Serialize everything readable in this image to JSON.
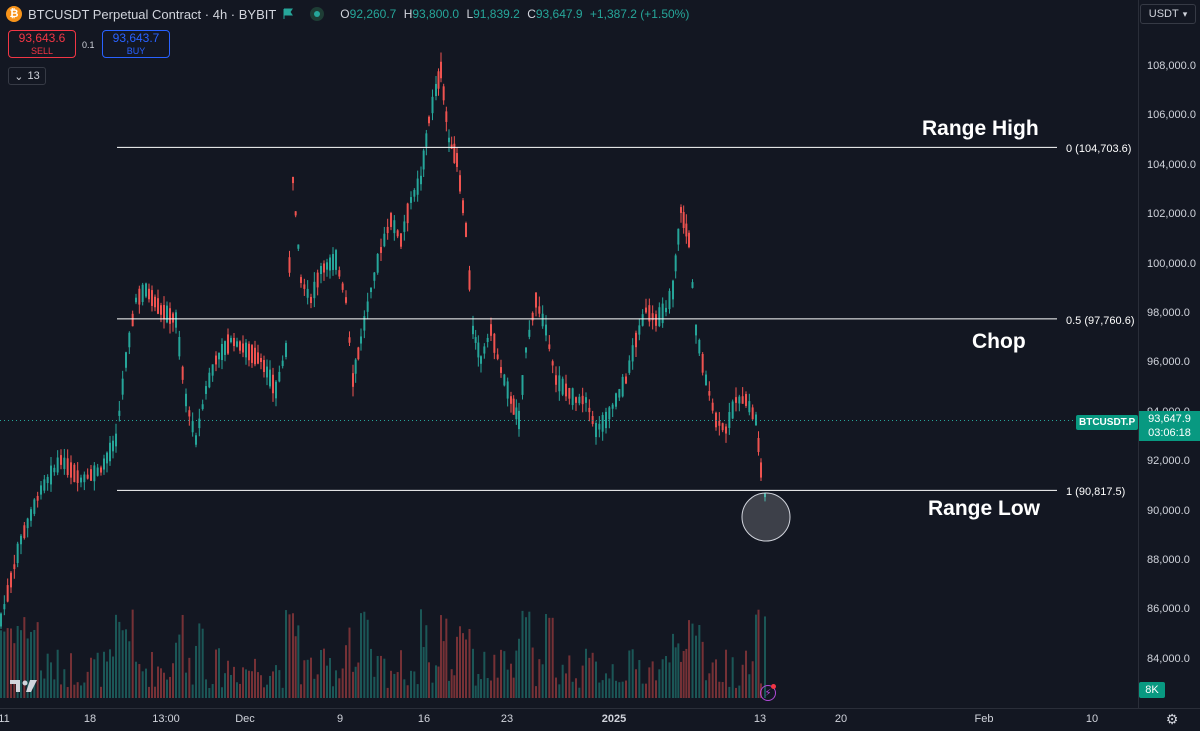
{
  "header": {
    "title": "BTCUSDT Perpetual Contract · 4h · BYBIT",
    "ohlc": [
      {
        "key": "O",
        "value": "92,260.7"
      },
      {
        "key": "H",
        "value": "93,800.0"
      },
      {
        "key": "L",
        "value": "91,839.2"
      },
      {
        "key": "C",
        "value": "93,647.9"
      }
    ],
    "change": "+1,387.2 (+1.50%)",
    "logo_icon": "bitcoin-logo-icon",
    "flag_icon": "flag-icon"
  },
  "trade": {
    "sell_price": "93,643.6",
    "sell_label": "SELL",
    "buy_price": "93,643.7",
    "buy_label": "BUY",
    "spread": "0.1"
  },
  "indicators_count": "13",
  "currency": "USDT",
  "price_axis": {
    "ticks": [
      "108,000.0",
      "106,000.0",
      "104,000.0",
      "102,000.0",
      "100,000.0",
      "98,000.0",
      "96,000.0",
      "94,000.0",
      "92,000.0",
      "90,000.0",
      "88,000.0",
      "86,000.0",
      "84,000.0"
    ]
  },
  "time_axis": {
    "ticks": [
      "11",
      "18",
      "13:00",
      "Dec",
      "9",
      "16",
      "23",
      "2025",
      "13",
      "20",
      "Feb",
      "10"
    ]
  },
  "levels": [
    {
      "label": "0 (104,703.6)",
      "price": 104703.6
    },
    {
      "label": "0.5 (97,760.6)",
      "price": 97760.6
    },
    {
      "label": "1 (90,817.5)",
      "price": 90817.5
    }
  ],
  "annotations": {
    "range_high": "Range High",
    "chop": "Chop",
    "range_low": "Range Low"
  },
  "last_price": {
    "symbol": "BTCUSDT.P",
    "price": "93,647.9",
    "countdown": "03:06:18",
    "value": 93647.9
  },
  "volume_badge": "8K",
  "colors": {
    "background": "#131722",
    "up": "#26a69a",
    "down": "#ef5350",
    "level_line": "#ffffff",
    "sell": "#f23645",
    "buy": "#2962ff"
  }
}
